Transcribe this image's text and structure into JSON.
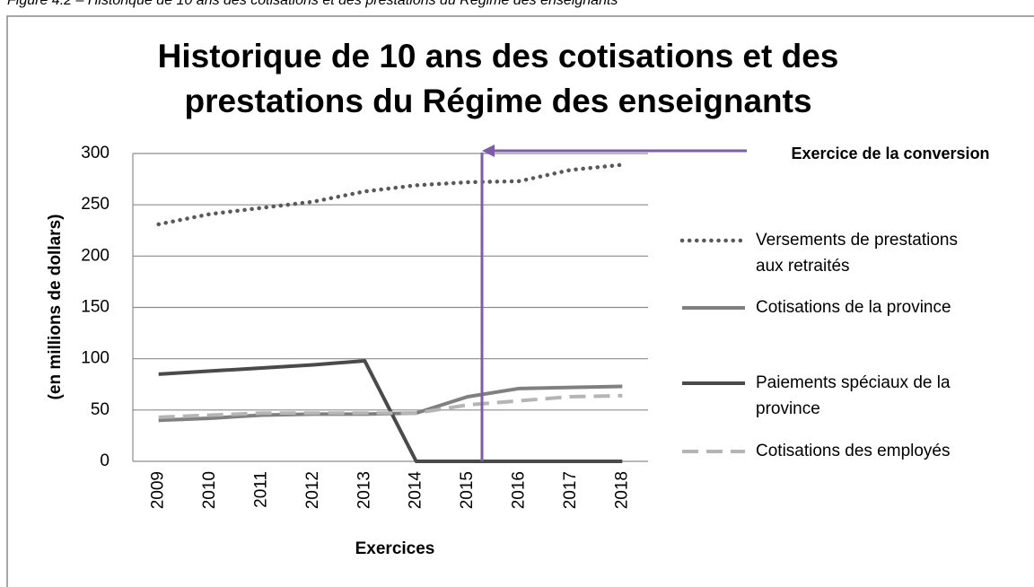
{
  "caption": "Figure 4.2 – Historique de 10 ans des cotisations et des prestations du Régime des enseignants",
  "chart_data": {
    "type": "line",
    "title": "Historique de 10 ans des cotisations et des prestations du Régime des enseignants",
    "x_label": "Exercices",
    "y_label": "(en millions de dollars)",
    "annotation": "Exercice de la conversion",
    "annotation_color": "#7e5da8",
    "categories": [
      "2009",
      "2010",
      "2011",
      "2012",
      "2013",
      "2014",
      "2015",
      "2016",
      "2017",
      "2018"
    ],
    "series": [
      {
        "name": "Versements de prestations aux retraités",
        "color": "#595959",
        "style": "dotted",
        "values": [
          231,
          241,
          247,
          253,
          263,
          269,
          272,
          273,
          284,
          289
        ]
      },
      {
        "name": "Cotisations de la province",
        "color": "#808080",
        "style": "solid",
        "values": [
          40,
          42,
          45,
          46,
          46,
          47,
          63,
          71,
          72,
          73
        ]
      },
      {
        "name": "Paiements spéciaux de la province",
        "color": "#4a4a4a",
        "style": "solid",
        "values": [
          85,
          88,
          91,
          94,
          98,
          0,
          0,
          0,
          0,
          0
        ]
      },
      {
        "name": "Cotisations des employés",
        "color": "#b5b5b5",
        "style": "dashed",
        "values": [
          43,
          45,
          47,
          47,
          47,
          47,
          55,
          59,
          63,
          64
        ]
      }
    ],
    "ylim": [
      0,
      300
    ],
    "yticks": [
      0,
      50,
      100,
      150,
      200,
      250,
      300
    ],
    "grid": true,
    "legend": "right"
  }
}
